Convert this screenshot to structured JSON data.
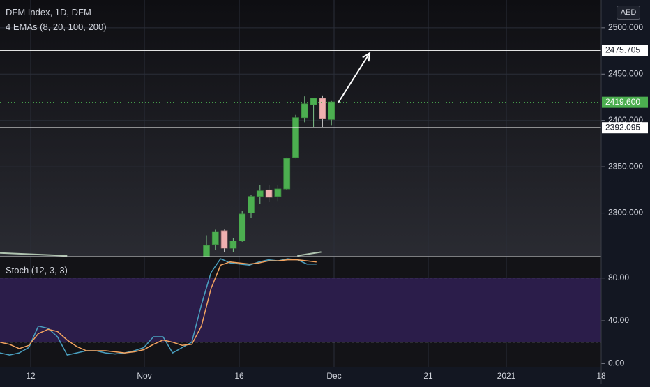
{
  "header": {
    "symbol_line": "DFM Index, 1D, DFM",
    "indicator_line": "4 EMAs (8, 20, 100, 200)",
    "currency": "AED"
  },
  "oscillator": {
    "label": "Stoch (12, 3, 3)"
  },
  "colors": {
    "background": "#131722",
    "up": "#4caf50",
    "down": "#f0b0b0",
    "k_line": "#4aa0c0",
    "d_line": "#f4a460",
    "stoch_band": "#2b1d4a",
    "ema": "#b0c4b0"
  },
  "chart_data": [
    {
      "type": "candlestick",
      "title": "DFM Index, 1D, DFM",
      "x_ticks": [
        "12",
        "Nov",
        "16",
        "Dec",
        "21",
        "2021",
        "18"
      ],
      "y_ticks": [
        "2300.000",
        "2350.000",
        "2400.000",
        "2450.000",
        "2500.000"
      ],
      "ylim": [
        2253,
        2530
      ],
      "grid": true,
      "price_labels": [
        "2475.705",
        "2419.600",
        "2392.095"
      ],
      "horizontal_lines": [
        2475.705,
        2392.095
      ],
      "last_price": 2419.6,
      "annotations": [
        "upward arrow projecting from last candle toward 2475.705"
      ],
      "candles": [
        {
          "date": "Nov 12",
          "o": 2250,
          "h": 2276,
          "l": 2244,
          "c": 2265
        },
        {
          "date": "Nov 13",
          "o": 2266,
          "h": 2282,
          "l": 2260,
          "c": 2280
        },
        {
          "date": "Nov 14",
          "o": 2281,
          "h": 2282,
          "l": 2258,
          "c": 2262
        },
        {
          "date": "Nov 15",
          "o": 2262,
          "h": 2273,
          "l": 2258,
          "c": 2270
        },
        {
          "date": "Nov 16",
          "o": 2270,
          "h": 2302,
          "l": 2269,
          "c": 2299
        },
        {
          "date": "Nov 17",
          "o": 2300,
          "h": 2320,
          "l": 2295,
          "c": 2318
        },
        {
          "date": "Nov 18",
          "o": 2318,
          "h": 2330,
          "l": 2310,
          "c": 2324
        },
        {
          "date": "Nov 19",
          "o": 2325,
          "h": 2330,
          "l": 2312,
          "c": 2317
        },
        {
          "date": "Nov 20",
          "o": 2318,
          "h": 2330,
          "l": 2313,
          "c": 2326
        },
        {
          "date": "Nov 21",
          "o": 2326,
          "h": 2360,
          "l": 2325,
          "c": 2359
        },
        {
          "date": "Nov 22",
          "o": 2360,
          "h": 2406,
          "l": 2359,
          "c": 2403
        },
        {
          "date": "Nov 23",
          "o": 2403,
          "h": 2426,
          "l": 2398,
          "c": 2418
        },
        {
          "date": "Nov 24",
          "o": 2417,
          "h": 2423,
          "l": 2393,
          "c": 2424
        },
        {
          "date": "Nov 25",
          "o": 2424,
          "h": 2427,
          "l": 2393,
          "c": 2402
        },
        {
          "date": "Nov 26",
          "o": 2401,
          "h": 2421,
          "l": 2395,
          "c": 2420
        }
      ],
      "ema_series": [
        {
          "name": "EMA",
          "x": [
            0,
            7
          ],
          "y": [
            2257,
            2254
          ]
        },
        {
          "name": "EMA",
          "x": [
            31,
            33.5
          ],
          "y": [
            2254,
            2258
          ]
        }
      ]
    },
    {
      "type": "line",
      "title": "Stoch (12, 3, 3)",
      "y_ticks": [
        "0.00",
        "40.00",
        "80.00"
      ],
      "ylim": [
        -3,
        100
      ],
      "levels": [
        80,
        20
      ],
      "series": [
        {
          "name": "%K",
          "x": [
            0,
            1,
            2,
            3,
            4,
            5,
            6,
            7,
            8,
            9,
            10,
            11,
            12,
            13,
            14,
            15,
            16,
            17,
            18,
            19,
            20,
            21,
            22,
            23,
            24,
            25,
            26,
            27,
            28,
            29,
            30,
            31,
            32,
            33
          ],
          "values": [
            10,
            8,
            10,
            15,
            35,
            33,
            25,
            8,
            10,
            12,
            12,
            10,
            9,
            10,
            12,
            15,
            25,
            25,
            10,
            15,
            20,
            55,
            85,
            98,
            94,
            93,
            92,
            95,
            97,
            96,
            98,
            97,
            93,
            93
          ]
        },
        {
          "name": "%D",
          "x": [
            0,
            1,
            2,
            3,
            4,
            5,
            6,
            7,
            8,
            9,
            10,
            11,
            12,
            13,
            14,
            15,
            16,
            17,
            18,
            19,
            20,
            21,
            22,
            23,
            24,
            25,
            26,
            27,
            28,
            29,
            30,
            31,
            32,
            33
          ],
          "values": [
            20,
            18,
            14,
            17,
            28,
            32,
            30,
            22,
            16,
            12,
            12,
            12,
            11,
            10,
            11,
            13,
            18,
            22,
            20,
            17,
            18,
            35,
            70,
            92,
            95,
            94,
            93,
            94,
            96,
            96,
            97,
            97,
            96,
            95
          ]
        }
      ]
    }
  ]
}
